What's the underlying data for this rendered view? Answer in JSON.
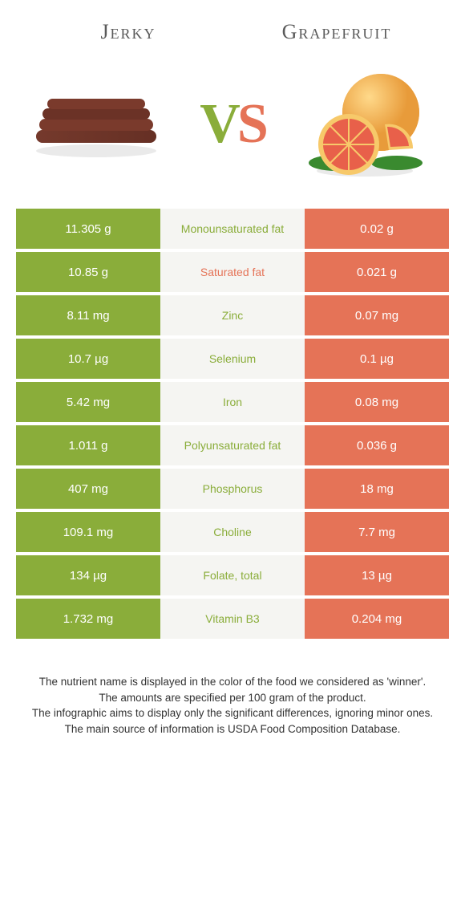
{
  "header": {
    "left_title": "Jerky",
    "right_title": "Grapefruit",
    "vs_v": "V",
    "vs_s": "S"
  },
  "colors": {
    "left_bg": "#8aad3a",
    "right_bg": "#e57357",
    "mid_bg": "#f5f5f2",
    "nutrient_left_color": "#8aad3a",
    "nutrient_right_color": "#e57357"
  },
  "rows": [
    {
      "left": "11.305 g",
      "nutrient": "Monounsaturated fat",
      "right": "0.02 g",
      "winner": "left"
    },
    {
      "left": "10.85 g",
      "nutrient": "Saturated fat",
      "right": "0.021 g",
      "winner": "right"
    },
    {
      "left": "8.11 mg",
      "nutrient": "Zinc",
      "right": "0.07 mg",
      "winner": "left"
    },
    {
      "left": "10.7 µg",
      "nutrient": "Selenium",
      "right": "0.1 µg",
      "winner": "left"
    },
    {
      "left": "5.42 mg",
      "nutrient": "Iron",
      "right": "0.08 mg",
      "winner": "left"
    },
    {
      "left": "1.011 g",
      "nutrient": "Polyunsaturated fat",
      "right": "0.036 g",
      "winner": "left"
    },
    {
      "left": "407 mg",
      "nutrient": "Phosphorus",
      "right": "18 mg",
      "winner": "left"
    },
    {
      "left": "109.1 mg",
      "nutrient": "Choline",
      "right": "7.7 mg",
      "winner": "left"
    },
    {
      "left": "134 µg",
      "nutrient": "Folate, total",
      "right": "13 µg",
      "winner": "left"
    },
    {
      "left": "1.732 mg",
      "nutrient": "Vitamin B3",
      "right": "0.204 mg",
      "winner": "left"
    }
  ],
  "footer": {
    "line1": "The nutrient name is displayed in the color of the food we considered as 'winner'.",
    "line2": "The amounts are specified per 100 gram of the product.",
    "line3": "The infographic aims to display only the significant differences, ignoring minor ones.",
    "line4": "The main source of information is USDA Food Composition Database."
  }
}
